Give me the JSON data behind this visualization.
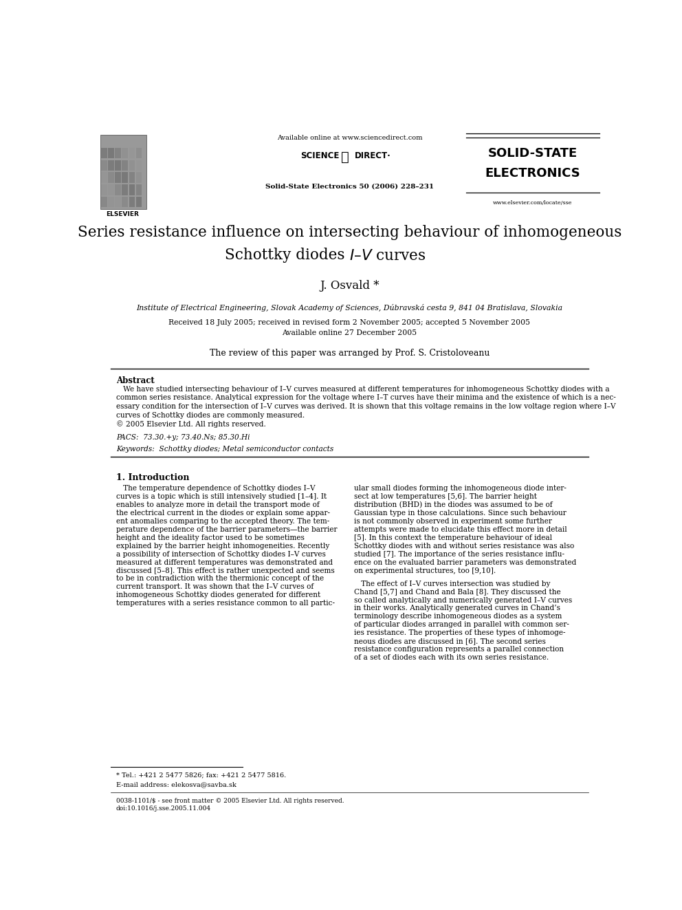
{
  "page_width": 9.92,
  "page_height": 13.23,
  "bg_color": "#ffffff",
  "title_line1": "Series resistance influence on intersecting behaviour of inhomogeneous",
  "title_line2": "Schottky diodes – curves",
  "author": "J. Osvald *",
  "affiliation": "Institute of Electrical Engineering, Slovak Academy of Sciences, Dúbravská cesta 9, 841 04 Bratislava, Slovakia",
  "received": "Received 18 July 2005; received in revised form 2 November 2005; accepted 5 November 2005",
  "available": "Available online 27 December 2005",
  "review_note": "The review of this paper was arranged by Prof. S. Cristoloveanu",
  "journal_header": "Available online at www.sciencedirect.com",
  "journal_name": "Solid-State Electronics 50 (2006) 228–231",
  "journal_brand1": "SOLID-STATE",
  "journal_brand2": "ELECTRONICS",
  "journal_url": "www.elsevier.com/locate/sse",
  "abstract_title": "Abstract",
  "copyright": "© 2005 Elsevier Ltd. All rights reserved.",
  "pacs": "PACS:  73.30.+y; 73.40.Ns; 85.30.Hi",
  "keywords": "Keywords:  Schottky diodes; Metal semiconductor contacts",
  "section1_title": "1. Introduction",
  "footnote_star": "* Tel.: +421 2 5477 5826; fax: +421 2 5477 5816.",
  "footnote_email": "E-mail address: elekosva@savba.sk",
  "bottom_note": "0038-1101/$ - see front matter © 2005 Elsevier Ltd. All rights reserved.",
  "doi": "doi:10.1016/j.sse.2005.11.004",
  "abstract_lines": [
    "   We have studied intersecting behaviour of I–V curves measured at different temperatures for inhomogeneous Schottky diodes with a",
    "common series resistance. Analytical expression for the voltage where I–T curves have their minima and the existence of which is a nec-",
    "essary condition for the intersection of I–V curves was derived. It is shown that this voltage remains in the low voltage region where I–V",
    "curves of Schottky diodes are commonly measured."
  ],
  "col1_lines": [
    "   The temperature dependence of Schottky diodes I–V",
    "curves is a topic which is still intensively studied [1–4]. It",
    "enables to analyze more in detail the transport mode of",
    "the electrical current in the diodes or explain some appar-",
    "ent anomalies comparing to the accepted theory. The tem-",
    "perature dependence of the barrier parameters—the barrier",
    "height and the ideality factor used to be sometimes",
    "explained by the barrier height inhomogeneities. Recently",
    "a possibility of intersection of Schottky diodes I–V curves",
    "measured at different temperatures was demonstrated and",
    "discussed [5–8]. This effect is rather unexpected and seems",
    "to be in contradiction with the thermionic concept of the",
    "current transport. It was shown that the I–V curves of",
    "inhomogeneous Schottky diodes generated for different",
    "temperatures with a series resistance common to all partic-"
  ],
  "col2_lines1": [
    "ular small diodes forming the inhomogeneous diode inter-",
    "sect at low temperatures [5,6]. The barrier height",
    "distribution (BHD) in the diodes was assumed to be of",
    "Gaussian type in those calculations. Since such behaviour",
    "is not commonly observed in experiment some further",
    "attempts were made to elucidate this effect more in detail",
    "[5]. In this context the temperature behaviour of ideal",
    "Schottky diodes with and without series resistance was also",
    "studied [7]. The importance of the series resistance influ-",
    "ence on the evaluated barrier parameters was demonstrated",
    "on experimental structures, too [9,10]."
  ],
  "col2_lines2": [
    "   The effect of I–V curves intersection was studied by",
    "Chand [5,7] and Chand and Bala [8]. They discussed the",
    "so called analytically and numerically generated I–V curves",
    "in their works. Analytically generated curves in Chand’s",
    "terminology describe inhomogeneous diodes as a system",
    "of particular diodes arranged in parallel with common ser-",
    "ies resistance. The properties of these types of inhomoge-",
    "neous diodes are discussed in [6]. The second series",
    "resistance configuration represents a parallel connection",
    "of a set of diodes each with its own series resistance."
  ]
}
